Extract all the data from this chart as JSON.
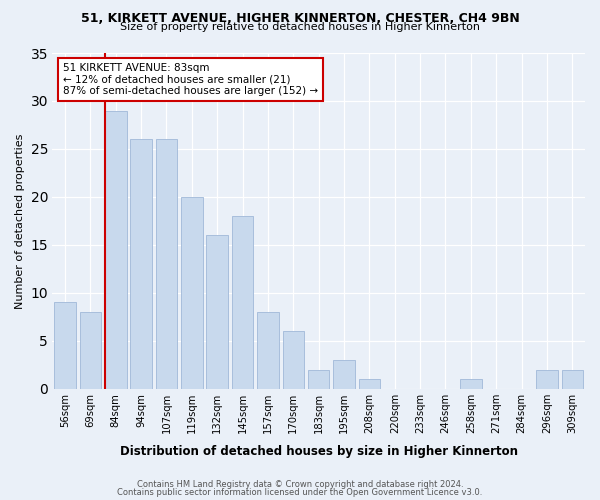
{
  "title1": "51, KIRKETT AVENUE, HIGHER KINNERTON, CHESTER, CH4 9BN",
  "title2": "Size of property relative to detached houses in Higher Kinnerton",
  "xlabel": "Distribution of detached houses by size in Higher Kinnerton",
  "ylabel": "Number of detached properties",
  "footer1": "Contains HM Land Registry data © Crown copyright and database right 2024.",
  "footer2": "Contains public sector information licensed under the Open Government Licence v3.0.",
  "annotation_line1": "51 KIRKETT AVENUE: 83sqm",
  "annotation_line2": "← 12% of detached houses are smaller (21)",
  "annotation_line3": "87% of semi-detached houses are larger (152) →",
  "bar_labels": [
    "56sqm",
    "69sqm",
    "84sqm",
    "94sqm",
    "107sqm",
    "119sqm",
    "132sqm",
    "145sqm",
    "157sqm",
    "170sqm",
    "183sqm",
    "195sqm",
    "208sqm",
    "220sqm",
    "233sqm",
    "246sqm",
    "258sqm",
    "271sqm",
    "284sqm",
    "296sqm",
    "309sqm"
  ],
  "bar_values": [
    9,
    8,
    29,
    26,
    26,
    20,
    16,
    18,
    8,
    6,
    2,
    3,
    1,
    0,
    0,
    0,
    1,
    0,
    0,
    2,
    2
  ],
  "bar_color": "#c8d9ed",
  "bar_edgecolor": "#a0b8d8",
  "vline_x": 2,
  "vline_color": "#cc0000",
  "bg_color": "#eaf0f8",
  "annotation_box_facecolor": "#ffffff",
  "annotation_border_color": "#cc0000",
  "ylim": [
    0,
    35
  ],
  "yticks": [
    0,
    5,
    10,
    15,
    20,
    25,
    30,
    35
  ]
}
